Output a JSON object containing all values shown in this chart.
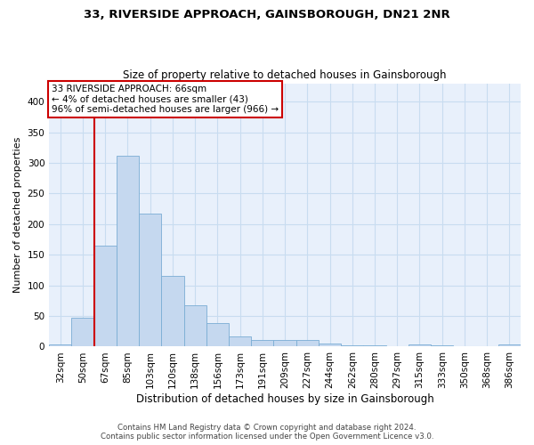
{
  "title": "33, RIVERSIDE APPROACH, GAINSBOROUGH, DN21 2NR",
  "subtitle": "Size of property relative to detached houses in Gainsborough",
  "xlabel": "Distribution of detached houses by size in Gainsborough",
  "ylabel": "Number of detached properties",
  "footer_line1": "Contains HM Land Registry data © Crown copyright and database right 2024.",
  "footer_line2": "Contains public sector information licensed under the Open Government Licence v3.0.",
  "bar_labels": [
    "32sqm",
    "50sqm",
    "67sqm",
    "85sqm",
    "103sqm",
    "120sqm",
    "138sqm",
    "156sqm",
    "173sqm",
    "191sqm",
    "209sqm",
    "227sqm",
    "244sqm",
    "262sqm",
    "280sqm",
    "297sqm",
    "315sqm",
    "333sqm",
    "350sqm",
    "368sqm",
    "386sqm"
  ],
  "bar_values": [
    4,
    47,
    165,
    312,
    217,
    116,
    68,
    39,
    17,
    11,
    11,
    11,
    5,
    2,
    2,
    0,
    4,
    2,
    0,
    0,
    3
  ],
  "bar_color": "#c5d8ef",
  "bar_edge_color": "#7aadd4",
  "grid_color": "#c8dcf0",
  "background_color": "#e8f0fb",
  "annotation_text_line1": "33 RIVERSIDE APPROACH: 66sqm",
  "annotation_text_line2": "← 4% of detached houses are smaller (43)",
  "annotation_text_line3": "96% of semi-detached houses are larger (966) →",
  "annotation_box_facecolor": "#ffffff",
  "annotation_box_edgecolor": "#cc0000",
  "annotation_line_color": "#cc0000",
  "ylim": [
    0,
    430
  ],
  "yticks": [
    0,
    50,
    100,
    150,
    200,
    250,
    300,
    350,
    400
  ],
  "title_fontsize": 9.5,
  "subtitle_fontsize": 8.5,
  "ylabel_fontsize": 8,
  "xlabel_fontsize": 8.5,
  "tick_fontsize": 7.5,
  "footer_fontsize": 6.2
}
